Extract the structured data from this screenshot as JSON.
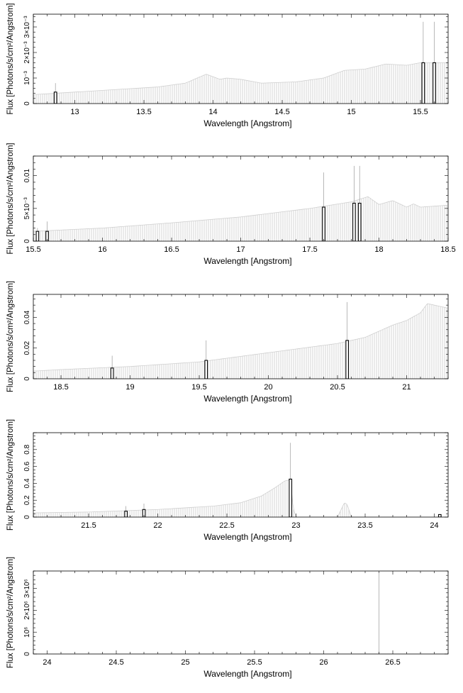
{
  "chart_data": [
    {
      "type": "area",
      "xlabel": "Wavelength [Angstrom]",
      "ylabel": "Flux [Photons/s/cm²/Angstrom]",
      "xlim": [
        12.7,
        15.7
      ],
      "ylim": [
        0,
        0.0035
      ],
      "xticks": [
        13,
        13.5,
        14,
        14.5,
        15,
        15.5
      ],
      "xtick_labels": [
        "13",
        "13.5",
        "14",
        "14.5",
        "15",
        "15.5"
      ],
      "yticks": [
        0,
        0.001,
        0.002,
        0.003
      ],
      "ytick_labels": [
        "0",
        "10⁻³",
        "2×10⁻³",
        "3×10⁻³"
      ],
      "grid": false,
      "continuum": {
        "x": [
          12.7,
          13.0,
          13.3,
          13.6,
          13.8,
          13.95,
          14.05,
          14.1,
          14.2,
          14.35,
          14.6,
          14.8,
          14.95,
          15.1,
          15.25,
          15.4,
          15.5,
          15.7
        ],
        "y": [
          0.00035,
          0.00045,
          0.00055,
          0.00065,
          0.0008,
          0.00115,
          0.00095,
          0.001,
          0.00095,
          0.0008,
          0.00085,
          0.001,
          0.0013,
          0.00135,
          0.00155,
          0.0015,
          0.0016,
          0.0016
        ]
      },
      "lines": {
        "x": [
          12.86,
          15.52,
          15.6
        ],
        "bar": [
          0.00045,
          0.0016,
          0.0016
        ],
        "peak": [
          0.0008,
          0.0032,
          0.0032
        ]
      }
    },
    {
      "type": "area",
      "xlabel": "Wavelength [Angstrom]",
      "ylabel": "Flux [Photons/s/cm²/Angstrom]",
      "xlim": [
        15.5,
        18.5
      ],
      "ylim": [
        0,
        0.013
      ],
      "xticks": [
        15.5,
        16,
        16.5,
        17,
        17.5,
        18,
        18.5
      ],
      "xtick_labels": [
        "15.5",
        "16",
        "16.5",
        "17",
        "17.5",
        "18",
        "18.5"
      ],
      "yticks": [
        0,
        0.005,
        0.01
      ],
      "ytick_labels": [
        "0",
        "5×10⁻³",
        "0.01"
      ],
      "grid": false,
      "continuum": {
        "x": [
          15.5,
          16.0,
          16.5,
          17.0,
          17.5,
          17.8,
          17.92,
          18.0,
          18.1,
          18.2,
          18.25,
          18.3,
          18.5
        ],
        "y": [
          0.0015,
          0.002,
          0.0028,
          0.0037,
          0.005,
          0.006,
          0.0068,
          0.0056,
          0.0062,
          0.0052,
          0.0057,
          0.0052,
          0.0055
        ]
      },
      "lines": {
        "x": [
          15.53,
          15.6,
          17.6,
          17.82,
          17.86
        ],
        "bar": [
          0.0015,
          0.0015,
          0.0052,
          0.0058,
          0.0058
        ],
        "peak": [
          0.002,
          0.003,
          0.0105,
          0.0115,
          0.0115
        ]
      }
    },
    {
      "type": "area",
      "xlabel": "Wavelength [Angstrom]",
      "ylabel": "Flux [Photons/s/cm²/Angstrom]",
      "xlim": [
        18.3,
        21.3
      ],
      "ylim": [
        0,
        0.055
      ],
      "xticks": [
        18.5,
        19,
        19.5,
        20,
        20.5,
        21
      ],
      "xtick_labels": [
        "18.5",
        "19",
        "19.5",
        "20",
        "20.5",
        "21"
      ],
      "yticks": [
        0,
        0.02,
        0.04
      ],
      "ytick_labels": [
        "0",
        "0.02",
        "0.04"
      ],
      "grid": false,
      "continuum": {
        "x": [
          18.3,
          18.5,
          19.0,
          19.5,
          20.0,
          20.5,
          20.7,
          20.9,
          21.0,
          21.1,
          21.15,
          21.2,
          21.3
        ],
        "y": [
          0.005,
          0.006,
          0.008,
          0.011,
          0.017,
          0.023,
          0.027,
          0.035,
          0.038,
          0.043,
          0.049,
          0.048,
          0.046
        ]
      },
      "lines": {
        "x": [
          18.87,
          19.55,
          20.57
        ],
        "bar": [
          0.007,
          0.012,
          0.025
        ],
        "peak": [
          0.015,
          0.025,
          0.05
        ]
      }
    },
    {
      "type": "area",
      "xlabel": "Wavelength [Angstrom]",
      "ylabel": "Flux [Photons/s/cm²/Angstrom]",
      "xlim": [
        21.1,
        24.1
      ],
      "ylim": [
        0,
        1.0
      ],
      "xticks": [
        21.5,
        22,
        22.5,
        23,
        23.5,
        24
      ],
      "xtick_labels": [
        "21.5",
        "22",
        "22.5",
        "23",
        "23.5",
        "24"
      ],
      "yticks": [
        0,
        0.2,
        0.4,
        0.6,
        0.8
      ],
      "ytick_labels": [
        "0",
        "0.2",
        "0.4",
        "0.6",
        "0.8"
      ],
      "grid": false,
      "continuum": {
        "x": [
          21.1,
          21.5,
          22.0,
          22.4,
          22.6,
          22.75,
          22.85,
          22.92,
          22.96,
          22.98,
          23.0,
          23.3,
          23.35,
          23.37,
          23.4,
          24.1
        ],
        "y": [
          0.05,
          0.06,
          0.09,
          0.13,
          0.17,
          0.25,
          0.35,
          0.43,
          0.44,
          0.1,
          0.0,
          0.0,
          0.17,
          0.15,
          0.0,
          0.0
        ]
      },
      "lines": {
        "x": [
          21.77,
          21.9,
          22.96,
          24.04
        ],
        "bar": [
          0.07,
          0.09,
          0.45,
          0.03
        ],
        "peak": [
          0.13,
          0.16,
          0.88,
          0.03
        ]
      }
    },
    {
      "type": "area",
      "xlabel": "Wavelength [Angstrom]",
      "ylabel": "Flux [Photons/s/cm²/Angstrom]",
      "xlim": [
        23.9,
        26.9
      ],
      "ylim": [
        0,
        3800000
      ],
      "xticks": [
        24,
        24.5,
        25,
        25.5,
        26,
        26.5
      ],
      "xtick_labels": [
        "24",
        "24.5",
        "25",
        "25.5",
        "26",
        "26.5"
      ],
      "yticks": [
        0,
        1000000,
        2000000,
        3000000
      ],
      "ytick_labels": [
        "0",
        "10⁶",
        "2×10⁶",
        "3×10⁶"
      ],
      "grid": false,
      "continuum": {
        "x": [
          23.9,
          26.9
        ],
        "y": [
          0,
          0
        ]
      },
      "lines": {
        "x": [
          26.4
        ],
        "bar": [
          0
        ],
        "peak": [
          3700000
        ]
      }
    }
  ]
}
